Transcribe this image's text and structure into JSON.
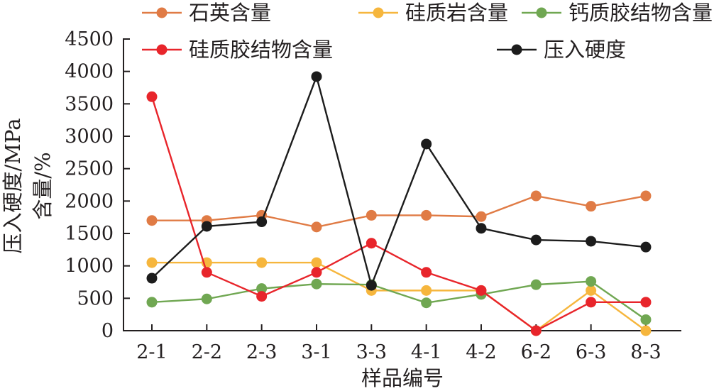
{
  "chart_data": {
    "type": "line",
    "categories": [
      "2-1",
      "2-2",
      "2-3",
      "3-1",
      "3-3",
      "4-1",
      "4-2",
      "6-2",
      "6-3",
      "8-3"
    ],
    "xlabel": "样品编号",
    "ylabel_lines": [
      "压入硬度/MPa",
      "含量/%"
    ],
    "ylim": [
      0,
      4500
    ],
    "yticks": [
      0,
      500,
      1000,
      1500,
      2000,
      2500,
      3000,
      3500,
      4000,
      4500
    ],
    "grid": false,
    "legend_position": "top",
    "series": [
      {
        "name": "石英含量",
        "color": "#e07b45",
        "values": [
          1700,
          1700,
          1780,
          1600,
          1780,
          1780,
          1760,
          2080,
          1920,
          2080
        ]
      },
      {
        "name": "硅质岩含量",
        "color": "#f6b63d",
        "values": [
          1050,
          1050,
          1050,
          1050,
          620,
          620,
          620,
          0,
          620,
          0
        ]
      },
      {
        "name": "钙质胶结物含量",
        "color": "#70a752",
        "values": [
          440,
          490,
          650,
          720,
          710,
          430,
          560,
          710,
          760,
          170
        ]
      },
      {
        "name": "硅质胶结物含量",
        "color": "#e8252b",
        "values": [
          3610,
          900,
          530,
          900,
          1350,
          900,
          620,
          0,
          440,
          440
        ]
      },
      {
        "name": "压入硬度",
        "color": "#1c1c1c",
        "values": [
          810,
          1610,
          1680,
          3920,
          700,
          2880,
          1580,
          1400,
          1380,
          1290
        ]
      }
    ]
  }
}
